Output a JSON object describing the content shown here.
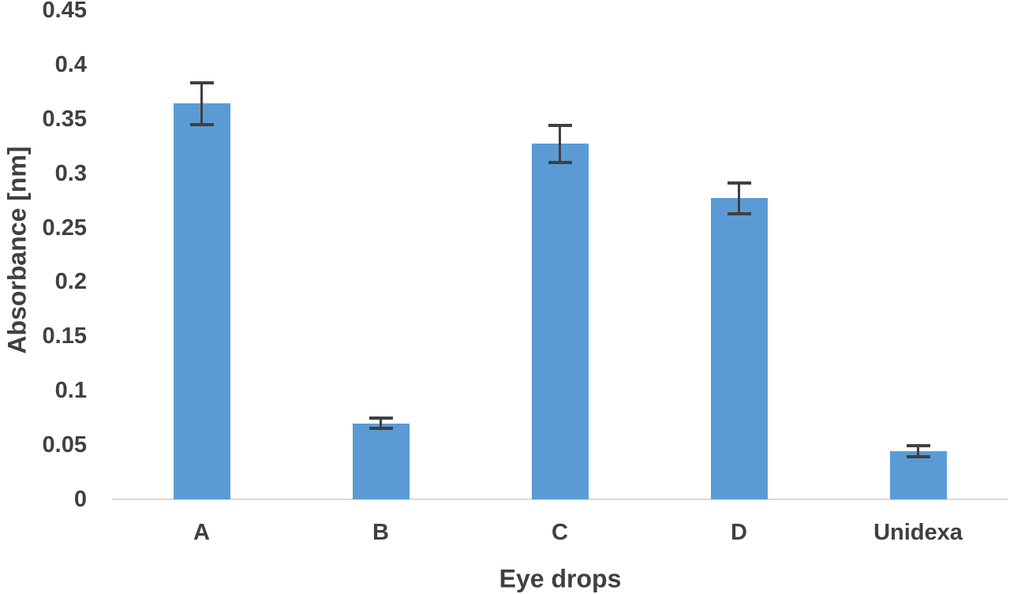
{
  "chart_data": {
    "type": "bar",
    "title": "",
    "xlabel": "Eye drops",
    "ylabel": "Absorbance [nm]",
    "categories": [
      "A",
      "B",
      "C",
      "D",
      "Unidexa"
    ],
    "values": [
      0.364,
      0.07,
      0.327,
      0.277,
      0.044
    ],
    "error_bars": [
      0.019,
      0.005,
      0.017,
      0.014,
      0.005
    ],
    "ylim": [
      0,
      0.45
    ],
    "ytick_values": [
      0,
      0.05,
      0.1,
      0.15,
      0.2,
      0.25,
      0.3,
      0.35,
      0.4,
      0.45
    ],
    "ytick_labels": [
      "0",
      "0.05",
      "0.1",
      "0.15",
      "0.2",
      "0.25",
      "0.3",
      "0.35",
      "0.4",
      "0.45"
    ],
    "grid": false,
    "legend": "none",
    "colors": {
      "bar": "#5B9BD5",
      "error_bar": "#404040",
      "axis_line": "#D9D9D9",
      "text": "#404040",
      "background": "#FFFFFF"
    }
  }
}
